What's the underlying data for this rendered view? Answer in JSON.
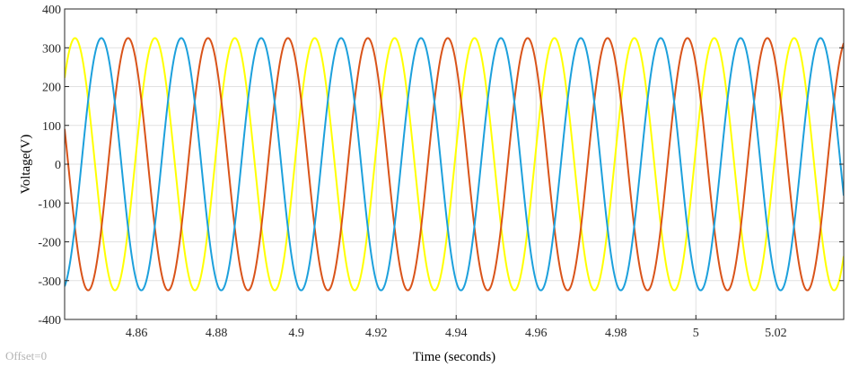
{
  "chart_data": {
    "type": "line",
    "title": "",
    "xlabel": "Time (seconds)",
    "ylabel": "Voltage(V)",
    "offset_note": "Offset=0",
    "xlim": [
      4.842,
      5.037
    ],
    "ylim": [
      -400,
      400
    ],
    "xticks": [
      4.86,
      4.88,
      4.9,
      4.92,
      4.94,
      4.96,
      4.98,
      5,
      5.02
    ],
    "xtick_labels": [
      "4.86",
      "4.88",
      "4.9",
      "4.92",
      "4.94",
      "4.96",
      "4.98",
      "5",
      "5.02"
    ],
    "yticks": [
      -400,
      -300,
      -200,
      -100,
      0,
      100,
      200,
      300,
      400
    ],
    "ytick_labels": [
      "-400",
      "-300",
      "-200",
      "-100",
      "0",
      "100",
      "200",
      "300",
      "400"
    ],
    "grid": true,
    "legend": "none",
    "series": [
      {
        "color": "#EDB120",
        "display_color": "#FFFF00",
        "amplitude": 325,
        "frequency_hz": 50,
        "peak_times": [
          4.8446,
          4.8646,
          4.8846,
          4.9046,
          4.9246,
          4.9446,
          4.9646,
          4.9846,
          5.0046,
          5.0246
        ]
      },
      {
        "color": "#D95319",
        "amplitude": 325,
        "frequency_hz": 50,
        "peak_times": [
          4.8579,
          4.8779,
          4.8979,
          4.9179,
          4.9379,
          4.9579,
          4.9779,
          4.9979,
          5.0179
        ]
      },
      {
        "color": "#0072BD",
        "display_color": "#1CA0DC",
        "amplitude": 325,
        "frequency_hz": 50,
        "peak_times": [
          4.8512,
          4.8712,
          4.8912,
          4.9112,
          4.9312,
          4.9512,
          4.9712,
          4.9912,
          5.0112,
          5.0312
        ]
      }
    ]
  }
}
